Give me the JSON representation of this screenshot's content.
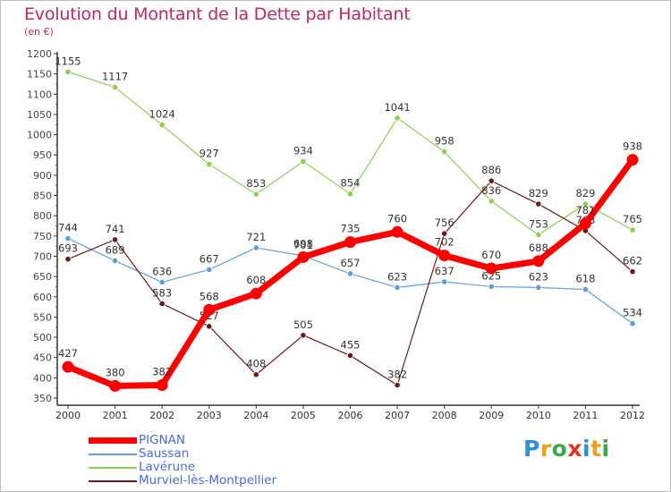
{
  "title": "Evolution du Montant de la Dette par Habitant",
  "subtitle": "(en €)",
  "brand": {
    "text": "Proxiti",
    "letter_colors": [
      "#2f8fd8",
      "#e8a317",
      "#3aa84a",
      "#e0321e",
      "#2f8fd8",
      "#e8a317",
      "#3aa84a"
    ]
  },
  "chart_data": {
    "type": "line",
    "title": "Evolution du Montant de la Dette par Habitant",
    "subtitle": "(en €)",
    "xlabel": "",
    "ylabel": "",
    "x": [
      "2000",
      "2001",
      "2002",
      "2003",
      "2004",
      "2005",
      "2006",
      "2007",
      "2008",
      "2009",
      "2010",
      "2011",
      "2012"
    ],
    "ylim": [
      350,
      1200
    ],
    "yticks": [
      350,
      400,
      450,
      500,
      550,
      600,
      650,
      700,
      750,
      800,
      850,
      900,
      950,
      1000,
      1050,
      1100,
      1150,
      1200
    ],
    "grid": false,
    "legend_position": "bottom-left",
    "series": [
      {
        "name": "PIGNAN",
        "color": "#ff0000",
        "emphasis": true,
        "values": [
          427,
          380,
          382,
          568,
          608,
          698,
          735,
          760,
          702,
          670,
          688,
          781,
          938
        ]
      },
      {
        "name": "Saussan",
        "color": "#5f9fd6",
        "values": [
          744,
          689,
          636,
          667,
          721,
          701,
          657,
          623,
          637,
          625,
          623,
          618,
          534
        ]
      },
      {
        "name": "Lavérune",
        "color": "#8cd050",
        "values": [
          1155,
          1117,
          1024,
          927,
          853,
          934,
          854,
          1041,
          958,
          836,
          753,
          829,
          765
        ]
      },
      {
        "name": "Murviel-lès-Montpellier",
        "color": "#6b1a1a",
        "values": [
          693,
          741,
          583,
          527,
          408,
          505,
          455,
          382,
          756,
          886,
          829,
          763,
          662
        ]
      }
    ]
  }
}
